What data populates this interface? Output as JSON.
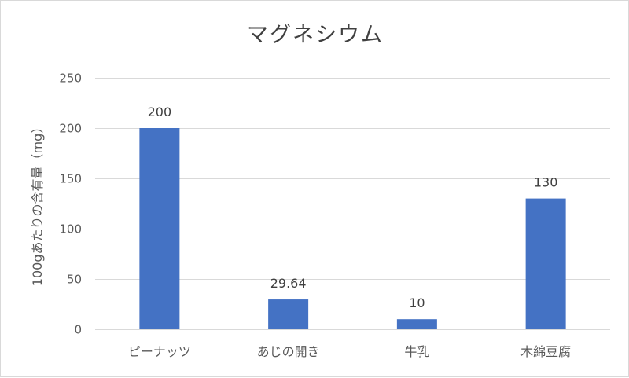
{
  "chart_data": {
    "type": "bar",
    "title": "マグネシウム",
    "xlabel": "",
    "ylabel": "100gあたりの含有量（mg）",
    "categories": [
      "ピーナッツ",
      "あじの開き",
      "牛乳",
      "木綿豆腐"
    ],
    "series": [
      {
        "values": [
          200,
          29.64,
          10,
          130
        ]
      }
    ],
    "data_labels": [
      "200",
      "29.64",
      "10",
      "130"
    ],
    "ylim": [
      0,
      250
    ],
    "yticks": [
      0,
      50,
      100,
      150,
      200,
      250
    ],
    "ytick_labels": [
      "0",
      "50",
      "100",
      "150",
      "200",
      "250"
    ],
    "grid": true,
    "legend": "none",
    "bar_color": "#4472c4"
  }
}
